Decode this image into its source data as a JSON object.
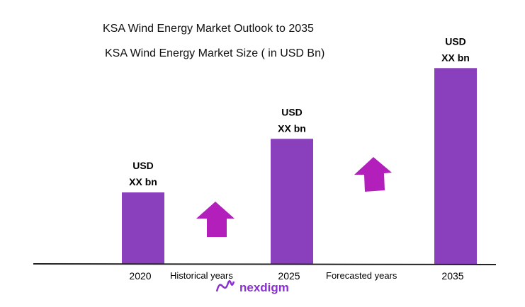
{
  "chart_data": {
    "type": "bar",
    "title": "KSA Wind Energy  Market Outlook to 2035",
    "subtitle": "KSA Wind Energy Market Size  ( in USD Bn)",
    "categories": [
      "2020",
      "2025",
      "2035"
    ],
    "values": [
      1.0,
      1.75,
      2.74
    ],
    "data_labels": [
      [
        "USD",
        "XX bn"
      ],
      [
        "USD",
        "XX bn"
      ],
      [
        "USD",
        "XX bn"
      ]
    ],
    "annotations": [
      "Historical years",
      "Forecasted years"
    ],
    "xlabel": "",
    "ylabel": "",
    "ylim": [
      0,
      2.8
    ],
    "grid": false,
    "colors": {
      "bar": "#8a40bd",
      "arrow": "#b21fbb",
      "axis": "#222222"
    }
  },
  "logo": {
    "text": "nexdigm",
    "color": "#8a2fd0"
  }
}
